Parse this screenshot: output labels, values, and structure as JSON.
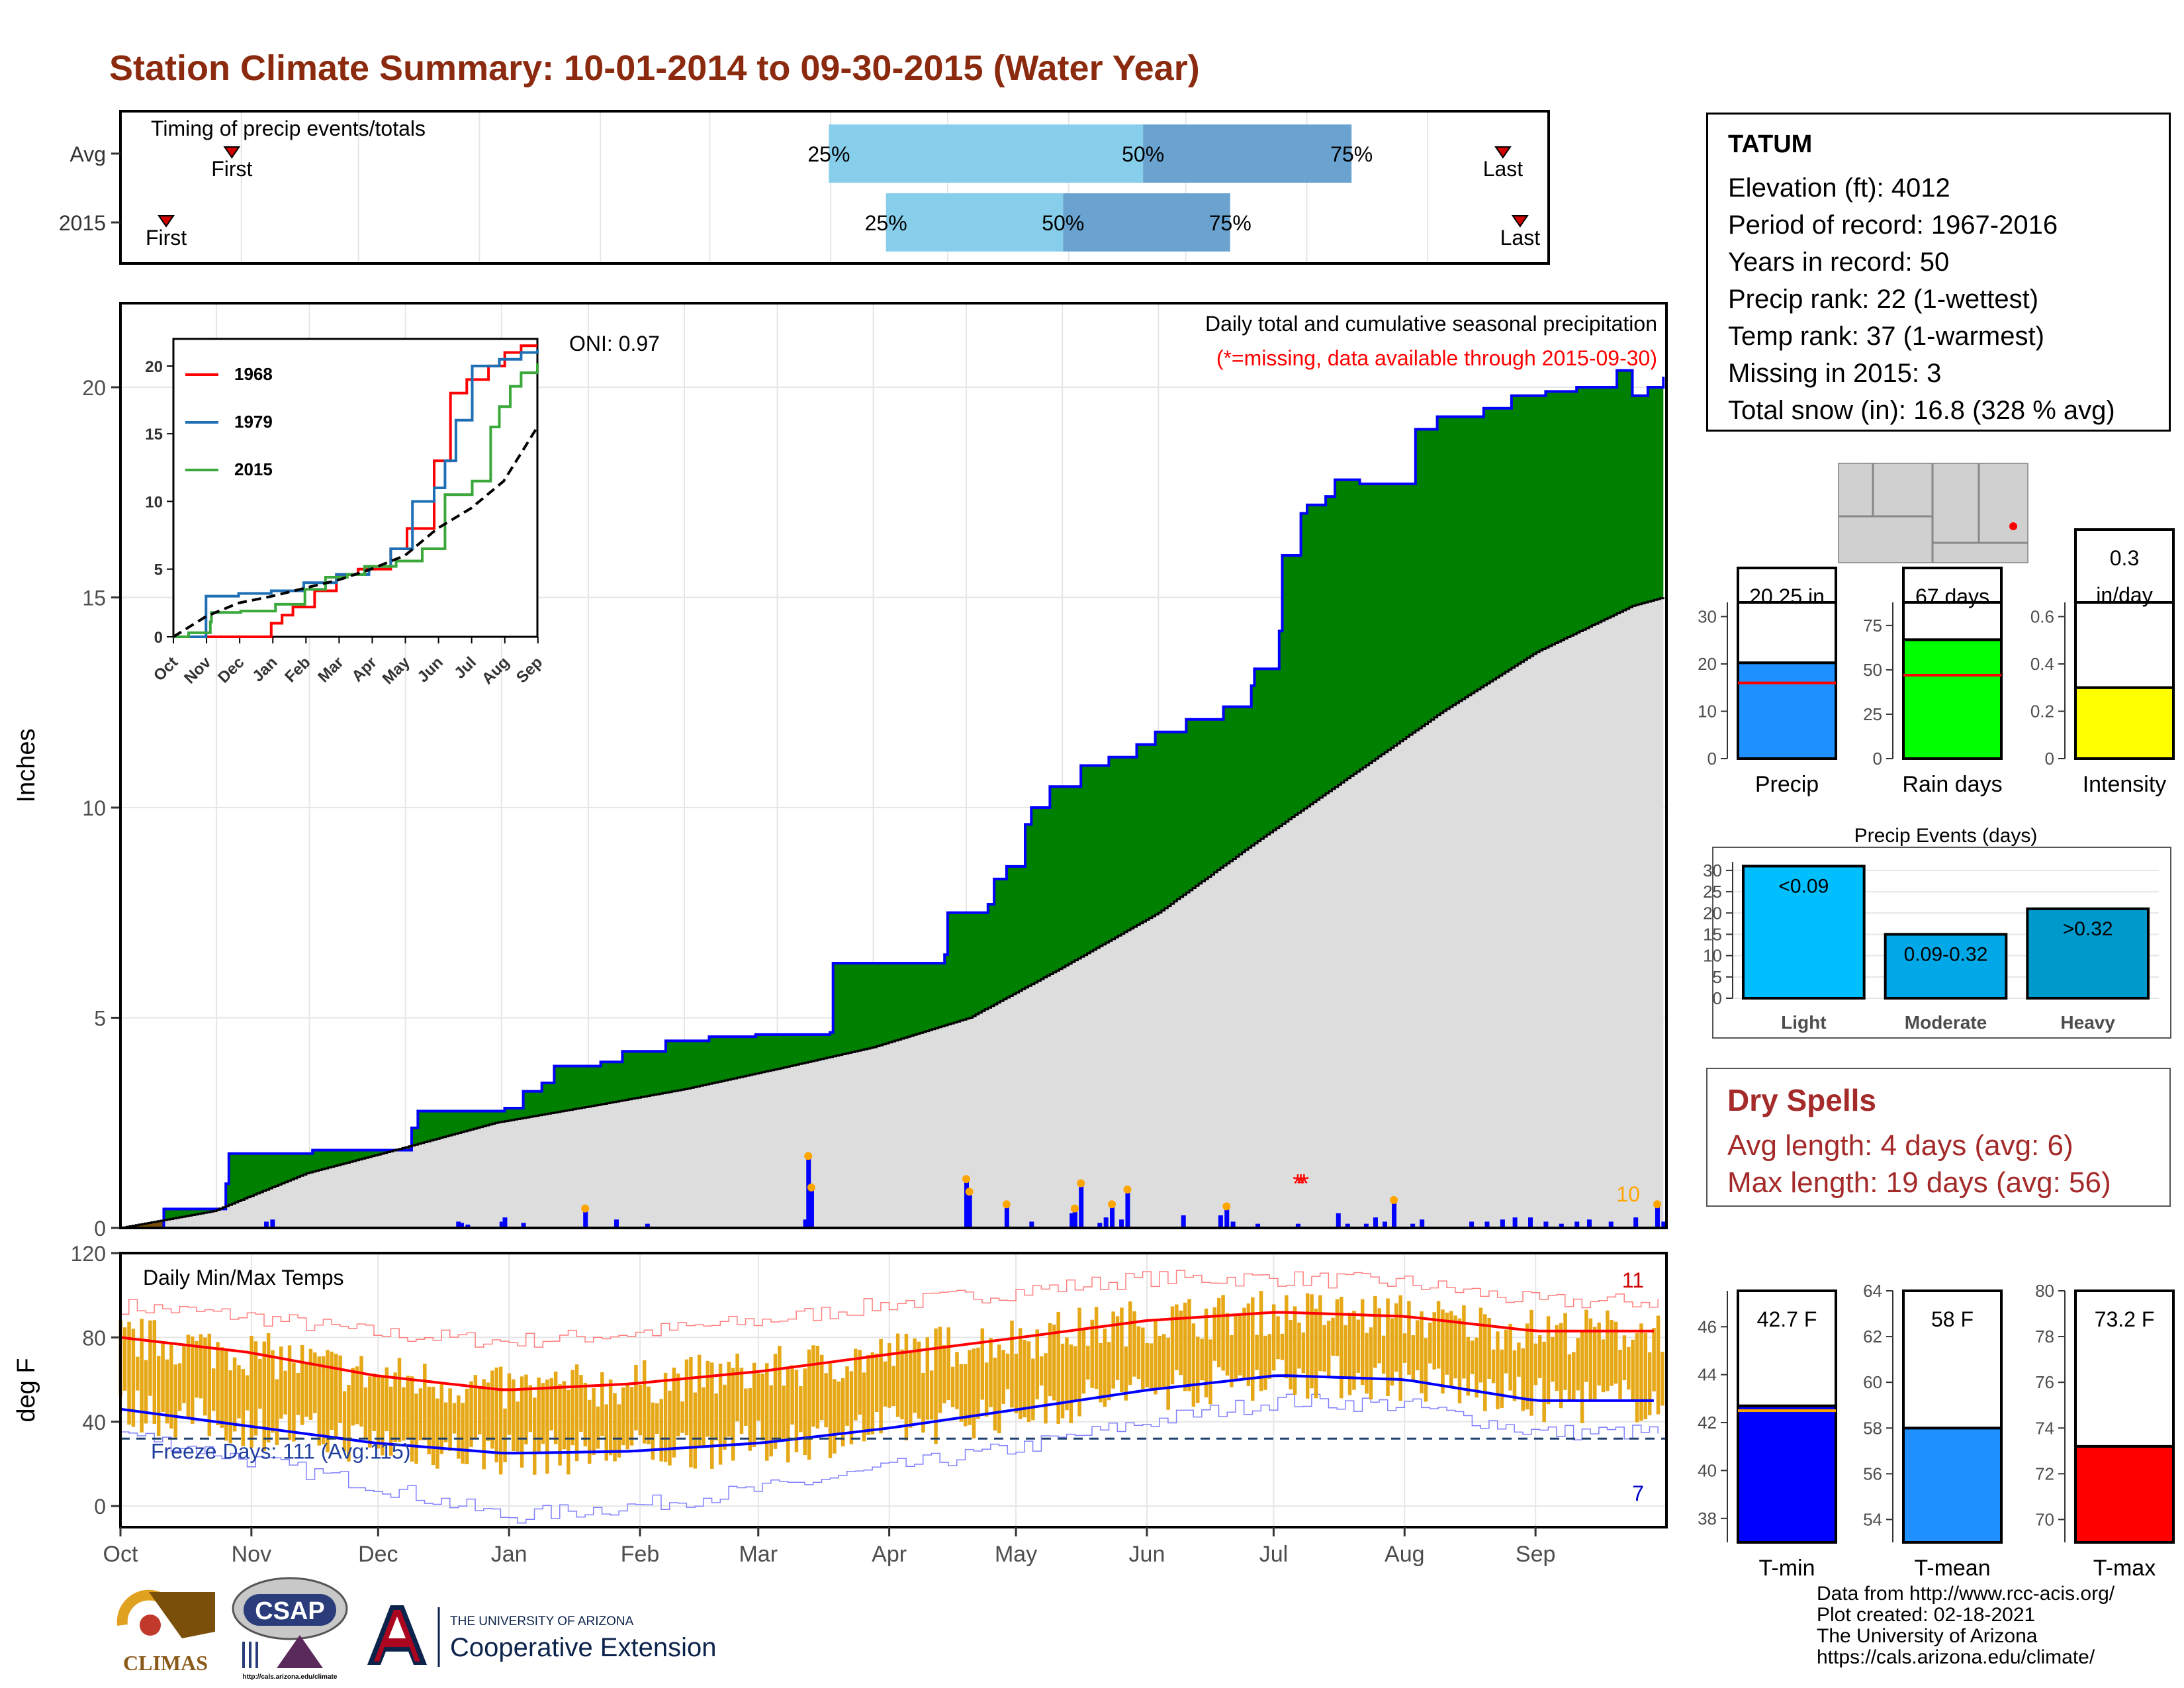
{
  "title": "Station Climate Summary: 10-01-2014 to 09-30-2015 (Water Year)",
  "timing": {
    "label": "Timing of precip events/totals",
    "rows": [
      {
        "name": "Avg",
        "first": 0.078,
        "q25": 0.496,
        "q50": 0.716,
        "q75": 0.862,
        "last": 0.968
      },
      {
        "name": "2015",
        "first": 0.032,
        "q25": 0.536,
        "q50": 0.66,
        "q75": 0.777,
        "last": 0.98
      }
    ],
    "labels": {
      "first": "First",
      "last": "Last",
      "q25": "25%",
      "q50": "50%",
      "q75": "75%"
    }
  },
  "station": {
    "name": "TATUM",
    "lines": [
      "Elevation (ft): 4012",
      "Period of record: 1967-2016",
      "Years in record: 50",
      "Precip rank: 22 (1-wettest)",
      "Temp rank: 37 (1-warmest)",
      "Missing in 2015: 3",
      "Total snow (in): 16.8 (328 % avg)"
    ]
  },
  "dry_spells": {
    "title": "Dry Spells",
    "avg_length": "Avg length: 4 days (avg: 6)",
    "max_length": "Max length: 19 days (avg: 56)"
  },
  "credits": [
    "Data from http://www.rcc-acis.org/",
    "Plot created: 02-18-2021",
    "The University of Arizona",
    "https://cals.arizona.edu/climate/"
  ],
  "logos": {
    "climas": "CLIMAS",
    "csap": "CSAP",
    "ua_small": "THE UNIVERSITY OF ARIZONA",
    "ua_big": "Cooperative Extension",
    "csap_url": "http://cals.arizona.edu/climate"
  },
  "colors": {
    "title": "#8b2a0e",
    "green_fill": "#008000",
    "brown_fill": "#7a4f0a",
    "avg_fill": "#dddddd",
    "precip_bar": "#0000ff",
    "temp_bar": "#e6a817",
    "tmax_line": "#ff0000",
    "tmin_line": "#0000ff",
    "dry_spell": "#a52a2a"
  },
  "chart_data": [
    {
      "type": "area",
      "id": "precip",
      "title": "Daily total and cumulative seasonal precipitation",
      "subtitle": "(*=missing, data available through 2015-09-30)",
      "oni": "ONI: 0.97",
      "ylabel": "Inches",
      "ylim": [
        0,
        22
      ],
      "yticks": [
        0,
        5,
        10,
        15,
        20
      ],
      "months": [
        "Oct",
        "Nov",
        "Dec",
        "Jan",
        "Feb",
        "Mar",
        "Apr",
        "May",
        "Jun",
        "Jul",
        "Aug",
        "Sep"
      ],
      "extreme_count": "10",
      "cum_2015": [
        [
          0,
          0
        ],
        [
          14,
          0.45
        ],
        [
          34,
          1.05
        ],
        [
          35,
          1.77
        ],
        [
          62,
          1.85
        ],
        [
          94,
          2.38
        ],
        [
          96,
          2.78
        ],
        [
          124,
          2.85
        ],
        [
          130,
          3.25
        ],
        [
          136,
          3.45
        ],
        [
          140,
          3.85
        ],
        [
          155,
          3.95
        ],
        [
          162,
          4.2
        ],
        [
          176,
          4.45
        ],
        [
          190,
          4.55
        ],
        [
          205,
          4.6
        ],
        [
          229,
          4.65
        ],
        [
          230,
          6.3
        ],
        [
          266,
          6.5
        ],
        [
          267,
          7.5
        ],
        [
          280,
          7.7
        ],
        [
          282,
          8.3
        ],
        [
          286,
          8.6
        ],
        [
          292,
          9.6
        ],
        [
          294,
          10.0
        ],
        [
          300,
          10.5
        ],
        [
          310,
          11.0
        ],
        [
          319,
          11.2
        ],
        [
          328,
          11.5
        ],
        [
          334,
          11.8
        ],
        [
          344,
          12.1
        ],
        [
          356,
          12.4
        ],
        [
          365,
          12.9
        ],
        [
          366,
          13.3
        ],
        [
          374,
          14.2
        ],
        [
          375,
          16.0
        ],
        [
          381,
          17.0
        ],
        [
          383,
          17.2
        ],
        [
          389,
          17.4
        ],
        [
          392,
          17.8
        ],
        [
          400,
          17.7
        ],
        [
          418,
          19.0
        ],
        [
          425,
          19.3
        ],
        [
          440,
          19.5
        ],
        [
          449,
          19.8
        ],
        [
          460,
          19.9
        ],
        [
          470,
          20.0
        ],
        [
          483,
          20.4
        ],
        [
          488,
          19.8
        ],
        [
          493,
          20.0
        ],
        [
          498,
          20.25
        ]
      ],
      "cum_avg": [
        [
          0,
          0
        ],
        [
          30,
          0.4
        ],
        [
          60,
          1.3
        ],
        [
          91,
          1.9
        ],
        [
          121,
          2.5
        ],
        [
          152,
          2.9
        ],
        [
          182,
          3.3
        ],
        [
          213,
          3.8
        ],
        [
          243,
          4.3
        ],
        [
          274,
          5.0
        ],
        [
          304,
          6.2
        ],
        [
          335,
          7.5
        ],
        [
          365,
          9.1
        ],
        [
          396,
          10.7
        ],
        [
          427,
          12.3
        ],
        [
          457,
          13.7
        ],
        [
          488,
          14.8
        ],
        [
          498,
          15.0
        ]
      ],
      "daily": [
        [
          47,
          0.15
        ],
        [
          49,
          0.2
        ],
        [
          109,
          0.15
        ],
        [
          110,
          0.12
        ],
        [
          112,
          0.08
        ],
        [
          123,
          0.15
        ],
        [
          124,
          0.25
        ],
        [
          130,
          0.12
        ],
        [
          150,
          0.4
        ],
        [
          160,
          0.2
        ],
        [
          170,
          0.1
        ],
        [
          221,
          0.2
        ],
        [
          222,
          1.65
        ],
        [
          223,
          0.9
        ],
        [
          273,
          1.1
        ],
        [
          274,
          0.8
        ],
        [
          286,
          0.5
        ],
        [
          294,
          0.15
        ],
        [
          307,
          0.35
        ],
        [
          308,
          0.4
        ],
        [
          310,
          1.0
        ],
        [
          316,
          0.12
        ],
        [
          318,
          0.25
        ],
        [
          320,
          0.5
        ],
        [
          323,
          0.2
        ],
        [
          325,
          0.85
        ],
        [
          343,
          0.3
        ],
        [
          355,
          0.3
        ],
        [
          357,
          0.45
        ],
        [
          359,
          0.15
        ],
        [
          367,
          0.1
        ],
        [
          380,
          0.1
        ],
        [
          393,
          0.35
        ],
        [
          396,
          0.1
        ],
        [
          402,
          0.1
        ],
        [
          405,
          0.25
        ],
        [
          408,
          0.15
        ],
        [
          411,
          0.6
        ],
        [
          417,
          0.1
        ],
        [
          420,
          0.2
        ],
        [
          436,
          0.15
        ],
        [
          441,
          0.15
        ],
        [
          446,
          0.2
        ],
        [
          450,
          0.25
        ],
        [
          455,
          0.25
        ],
        [
          460,
          0.15
        ],
        [
          465,
          0.1
        ],
        [
          470,
          0.15
        ],
        [
          474,
          0.2
        ],
        [
          481,
          0.15
        ],
        [
          489,
          0.25
        ],
        [
          496,
          0.5
        ],
        [
          498,
          0.15
        ]
      ],
      "inset": {
        "months": [
          "Oct",
          "Nov",
          "Dec",
          "Jan",
          "Feb",
          "Mar",
          "Apr",
          "May",
          "Jun",
          "Jul",
          "Aug",
          "Sep"
        ],
        "ylim": [
          0,
          22
        ],
        "yticks": [
          0,
          5,
          10,
          15,
          20
        ],
        "series": [
          {
            "name": "1968",
            "color": "#ff0000",
            "points": [
              [
                0,
                0
              ],
              [
                80,
                0
              ],
              [
                90,
                1
              ],
              [
                100,
                1.6
              ],
              [
                110,
                2.2
              ],
              [
                130,
                3.4
              ],
              [
                150,
                4.6
              ],
              [
                170,
                5.0
              ],
              [
                200,
                6.5
              ],
              [
                215,
                8.0
              ],
              [
                240,
                13
              ],
              [
                255,
                18
              ],
              [
                270,
                19
              ],
              [
                290,
                20
              ],
              [
                305,
                21
              ],
              [
                320,
                21.5
              ],
              [
                335,
                21.5
              ]
            ]
          },
          {
            "name": "1979",
            "color": "#1f6fb5",
            "points": [
              [
                0,
                0
              ],
              [
                30,
                3.0
              ],
              [
                60,
                3.2
              ],
              [
                90,
                3.4
              ],
              [
                120,
                4.0
              ],
              [
                150,
                4.6
              ],
              [
                180,
                5.2
              ],
              [
                200,
                6.5
              ],
              [
                220,
                10
              ],
              [
                240,
                11
              ],
              [
                250,
                13
              ],
              [
                260,
                16
              ],
              [
                275,
                20
              ],
              [
                300,
                20.5
              ],
              [
                320,
                21
              ],
              [
                335,
                21.2
              ]
            ]
          },
          {
            "name": "2015",
            "color": "#3aa83a",
            "points": [
              [
                0,
                0
              ],
              [
                14,
                0.3
              ],
              [
                34,
                1.1
              ],
              [
                35,
                1.8
              ],
              [
                62,
                1.9
              ],
              [
                94,
                2.4
              ],
              [
                121,
                3.5
              ],
              [
                140,
                4.4
              ],
              [
                160,
                4.6
              ],
              [
                176,
                5.2
              ],
              [
                205,
                5.6
              ],
              [
                229,
                6.5
              ],
              [
                250,
                10.5
              ],
              [
                275,
                11.5
              ],
              [
                292,
                15.5
              ],
              [
                300,
                17
              ],
              [
                310,
                18.5
              ],
              [
                320,
                19.5
              ],
              [
                335,
                20.2
              ]
            ]
          },
          {
            "name": "avg",
            "color": "#000000",
            "dashed": true,
            "points": [
              [
                0,
                0
              ],
              [
                30,
                1.5
              ],
              [
                60,
                2.5
              ],
              [
                91,
                3.0
              ],
              [
                121,
                3.6
              ],
              [
                152,
                4.2
              ],
              [
                182,
                5.0
              ],
              [
                213,
                6.0
              ],
              [
                243,
                8.0
              ],
              [
                274,
                9.5
              ],
              [
                304,
                11.5
              ],
              [
                335,
                15.5
              ]
            ]
          }
        ]
      }
    },
    {
      "type": "bar",
      "id": "temp",
      "title": "Daily Min/Max Temps",
      "ylabel": "deg F",
      "ylim": [
        -10,
        120
      ],
      "yticks": [
        0,
        40,
        80,
        120
      ],
      "months": [
        "Oct",
        "Nov",
        "Dec",
        "Jan",
        "Feb",
        "Mar",
        "Apr",
        "May",
        "Jun",
        "Jul",
        "Aug",
        "Sep"
      ],
      "freeze_label": "Freeze Days: 111 (Avg:115)",
      "freeze_line": 32,
      "extreme_hot_count": "11",
      "extreme_cold_count": "7",
      "avg_max": [
        [
          0,
          80
        ],
        [
          30,
          73
        ],
        [
          60,
          62
        ],
        [
          91,
          55
        ],
        [
          121,
          58
        ],
        [
          152,
          64
        ],
        [
          182,
          72
        ],
        [
          213,
          80
        ],
        [
          243,
          88
        ],
        [
          274,
          92
        ],
        [
          304,
          90
        ],
        [
          335,
          83
        ]
      ],
      "avg_min": [
        [
          0,
          46
        ],
        [
          30,
          38
        ],
        [
          60,
          30
        ],
        [
          91,
          25
        ],
        [
          121,
          26
        ],
        [
          152,
          30
        ],
        [
          182,
          37
        ],
        [
          213,
          46
        ],
        [
          243,
          55
        ],
        [
          274,
          62
        ],
        [
          304,
          60
        ],
        [
          335,
          50
        ]
      ],
      "record_max": [
        [
          0,
          95
        ],
        [
          30,
          90
        ],
        [
          60,
          82
        ],
        [
          91,
          78
        ],
        [
          121,
          82
        ],
        [
          152,
          88
        ],
        [
          182,
          96
        ],
        [
          213,
          102
        ],
        [
          243,
          108
        ],
        [
          274,
          108
        ],
        [
          304,
          106
        ],
        [
          335,
          97
        ]
      ],
      "record_min": [
        [
          0,
          35
        ],
        [
          30,
          22
        ],
        [
          60,
          10
        ],
        [
          91,
          -5
        ],
        [
          121,
          0
        ],
        [
          152,
          8
        ],
        [
          182,
          18
        ],
        [
          213,
          28
        ],
        [
          243,
          40
        ],
        [
          274,
          50
        ],
        [
          304,
          48
        ],
        [
          335,
          35
        ]
      ]
    },
    {
      "type": "bar",
      "id": "precip_total",
      "title": "Precip",
      "value": 20.25,
      "label": "20.25 in",
      "avg": 16,
      "ylim": [
        0,
        33
      ],
      "yticks": [
        0,
        10,
        20,
        30
      ],
      "color": "#1e90ff"
    },
    {
      "type": "bar",
      "id": "rain_days",
      "title": "Rain days",
      "value": 67,
      "label": "67 days",
      "avg": 47,
      "ylim": [
        0,
        88
      ],
      "yticks": [
        0,
        25,
        50,
        75
      ],
      "color": "#00ff00"
    },
    {
      "type": "bar",
      "id": "intensity",
      "title": "Intensity",
      "value": 0.3,
      "label": "0.3",
      "label2": "in/day",
      "avg": 0.34,
      "ylim": [
        0,
        0.66
      ],
      "yticks": [
        0.0,
        0.2,
        0.4,
        0.6
      ],
      "color": "#ffff00"
    },
    {
      "type": "bar",
      "id": "precip_events",
      "title": "Precip Events (days)",
      "categories": [
        "Light",
        "Moderate",
        "Heavy"
      ],
      "values": [
        31,
        15,
        21
      ],
      "labels": [
        "<0.09",
        "0.09-0.32",
        ">0.32"
      ],
      "ylim": [
        0,
        32
      ],
      "yticks": [
        0,
        5,
        10,
        15,
        20,
        25,
        30
      ],
      "colors": [
        "#00bfff",
        "#00a8e8",
        "#0099cc"
      ]
    },
    {
      "type": "bar",
      "id": "tmin",
      "title": "T-min",
      "value": 42.7,
      "label": "42.7 F",
      "avg": 42.5,
      "ylim": [
        37,
        47.5
      ],
      "yticks": [
        38,
        40,
        42,
        44,
        46
      ],
      "color": "#0000ff"
    },
    {
      "type": "bar",
      "id": "tmean",
      "title": "T-mean",
      "value": 58,
      "label": "58 F",
      "avg": 58.6,
      "ylim": [
        53,
        64
      ],
      "yticks": [
        54,
        56,
        58,
        60,
        62,
        64
      ],
      "color": "#1e90ff"
    },
    {
      "type": "bar",
      "id": "tmax",
      "title": "T-max",
      "value": 73.2,
      "label": "73.2 F",
      "avg": 74.7,
      "ylim": [
        69,
        80
      ],
      "yticks": [
        70,
        72,
        74,
        76,
        78,
        80
      ],
      "color": "#ff0000"
    }
  ]
}
